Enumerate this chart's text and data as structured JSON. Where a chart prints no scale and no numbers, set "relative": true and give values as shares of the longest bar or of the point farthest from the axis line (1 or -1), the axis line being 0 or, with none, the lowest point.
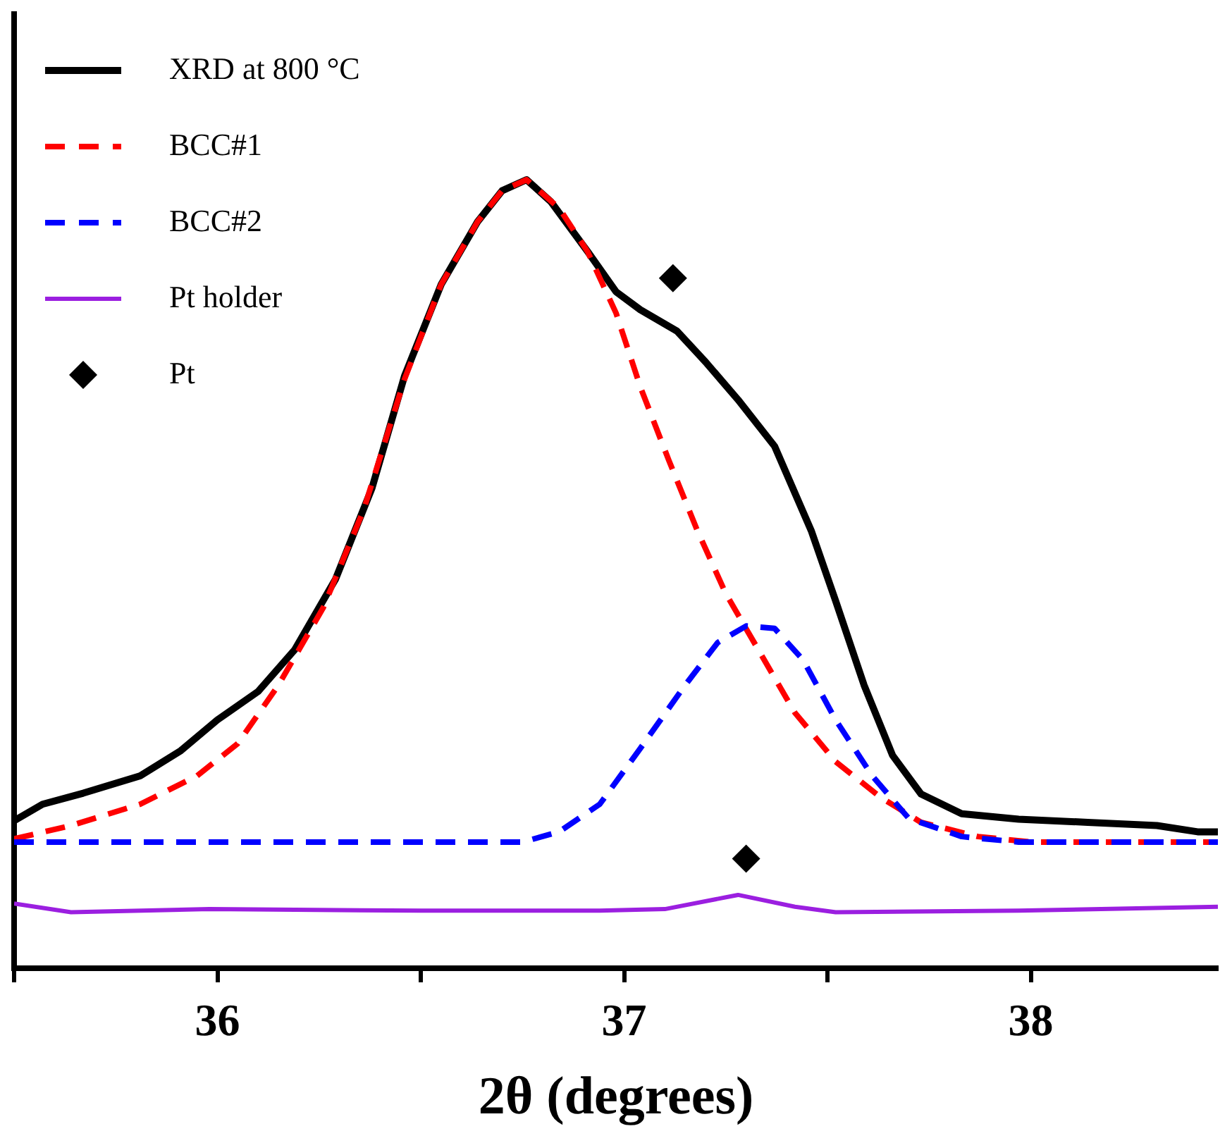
{
  "chart_data": {
    "type": "line",
    "relative": true,
    "xlabel": "2θ (degrees)",
    "xlim": [
      35.5,
      38.46
    ],
    "xticks": [
      {
        "value": 35.5,
        "label": null
      },
      36,
      {
        "value": 36.5,
        "label": null
      },
      37,
      {
        "value": 37.5,
        "label": null
      },
      38
    ],
    "tick_labels": "x",
    "legend": "top left",
    "grid": false,
    "series": [
      {
        "name": "XRD at 800 °C",
        "color": "#000000",
        "line_style": "solid",
        "marker": "none",
        "x": [
          35.5,
          35.57,
          35.67,
          35.81,
          35.91,
          36.0,
          36.1,
          36.19,
          36.29,
          36.38,
          36.46,
          36.55,
          36.64,
          36.7,
          36.76,
          36.82,
          36.91,
          36.98,
          37.04,
          37.13,
          37.2,
          37.28,
          37.37,
          37.46,
          37.52,
          37.59,
          37.66,
          37.73,
          37.83,
          37.97,
          38.14,
          38.31,
          38.41,
          38.46
        ],
        "values": [
          0.187,
          0.208,
          0.222,
          0.244,
          0.276,
          0.315,
          0.351,
          0.404,
          0.493,
          0.609,
          0.751,
          0.867,
          0.947,
          0.986,
          1.0,
          0.972,
          0.909,
          0.858,
          0.835,
          0.808,
          0.769,
          0.721,
          0.662,
          0.555,
          0.466,
          0.359,
          0.27,
          0.221,
          0.196,
          0.189,
          0.185,
          0.181,
          0.173,
          0.173
        ]
      },
      {
        "name": "BCC#1",
        "color": "#ff0000",
        "line_style": "dashed",
        "marker": "none",
        "x": [
          35.5,
          35.64,
          35.81,
          35.95,
          36.05,
          36.15,
          36.26,
          36.36,
          36.46,
          36.55,
          36.64,
          36.7,
          36.76,
          36.84,
          36.91,
          36.98,
          37.04,
          37.11,
          37.18,
          37.25,
          37.34,
          37.42,
          37.52,
          37.63,
          37.73,
          37.87,
          38.0,
          38.46
        ],
        "values": [
          0.164,
          0.181,
          0.208,
          0.244,
          0.285,
          0.359,
          0.457,
          0.582,
          0.747,
          0.867,
          0.947,
          0.986,
          1.0,
          0.964,
          0.909,
          0.831,
          0.737,
          0.644,
          0.555,
          0.475,
          0.395,
          0.324,
          0.262,
          0.217,
          0.185,
          0.167,
          0.16,
          0.16
        ]
      },
      {
        "name": "BCC#2",
        "color": "#0000ff",
        "line_style": "dashed",
        "marker": "none",
        "x": [
          35.5,
          36.75,
          36.84,
          36.94,
          37.04,
          37.15,
          37.23,
          37.3,
          37.37,
          37.44,
          37.52,
          37.61,
          37.7,
          37.83,
          37.97,
          38.46
        ],
        "values": [
          0.16,
          0.16,
          0.173,
          0.208,
          0.279,
          0.359,
          0.413,
          0.434,
          0.431,
          0.391,
          0.315,
          0.244,
          0.19,
          0.167,
          0.16,
          0.16
        ]
      },
      {
        "name": "Pt holder",
        "color": "#9b1fe0",
        "line_style": "solid",
        "marker": "none",
        "x": [
          35.5,
          35.64,
          35.98,
          36.5,
          36.94,
          37.1,
          37.28,
          37.42,
          37.52,
          37.97,
          38.46
        ],
        "values": [
          0.082,
          0.071,
          0.075,
          0.073,
          0.073,
          0.075,
          0.093,
          0.078,
          0.071,
          0.073,
          0.078
        ]
      },
      {
        "name": "Pt",
        "type": "scatter",
        "color": "#000000",
        "marker": "diamond",
        "x": [
          37.12,
          37.3
        ],
        "values": [
          0.875,
          0.139
        ]
      }
    ]
  }
}
